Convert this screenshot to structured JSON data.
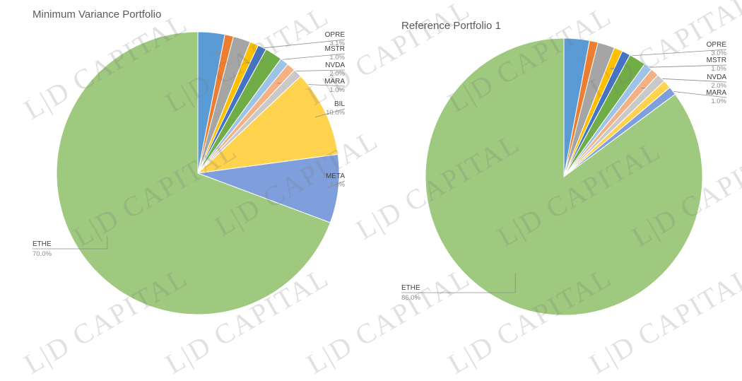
{
  "watermark_text": "L|D CAPITAL",
  "chart_data": [
    {
      "type": "pie",
      "title": "Minimum Variance Portfolio",
      "slices": [
        {
          "label": "OPRE",
          "value": 3.1,
          "pct": "3.1%",
          "color": "#5b9bd5",
          "labeled": true
        },
        {
          "label": "",
          "value": 1.0,
          "color": "#ed7d31",
          "labeled": false
        },
        {
          "label": "",
          "value": 2.0,
          "color": "#a5a5a5",
          "labeled": false
        },
        {
          "label": "MSTR",
          "value": 1.0,
          "pct": "1.0%",
          "color": "#ffc000",
          "labeled": true
        },
        {
          "label": "",
          "value": 1.0,
          "color": "#4472c4",
          "labeled": false
        },
        {
          "label": "NVDA",
          "value": 2.0,
          "pct": "2.0%",
          "color": "#70ad47",
          "labeled": true
        },
        {
          "label": "",
          "value": 1.0,
          "color": "#9dc3e6",
          "labeled": false
        },
        {
          "label": "MARA",
          "value": 1.0,
          "pct": "1.0%",
          "color": "#f4b183",
          "labeled": true
        },
        {
          "label": "",
          "value": 1.0,
          "color": "#c9c9c9",
          "labeled": false
        },
        {
          "label": "BIL",
          "value": 10.0,
          "pct": "10.0%",
          "color": "#ffd34e",
          "labeled": true
        },
        {
          "label": "META",
          "value": 7.9,
          "pct": "7.9%",
          "color": "#7f9fdc",
          "labeled": true
        },
        {
          "label": "ETHE",
          "value": 70.0,
          "pct": "70.0%",
          "color": "#9ec97f",
          "labeled": true
        }
      ]
    },
    {
      "type": "pie",
      "title": "Reference Portfolio 1",
      "slices": [
        {
          "label": "OPRE",
          "value": 3.0,
          "pct": "3.0%",
          "color": "#5b9bd5",
          "labeled": true
        },
        {
          "label": "",
          "value": 1.0,
          "color": "#ed7d31",
          "labeled": false
        },
        {
          "label": "",
          "value": 2.0,
          "color": "#a5a5a5",
          "labeled": false
        },
        {
          "label": "MSTR",
          "value": 1.0,
          "pct": "1.0%",
          "color": "#ffc000",
          "labeled": true
        },
        {
          "label": "",
          "value": 1.0,
          "color": "#4472c4",
          "labeled": false
        },
        {
          "label": "NVDA",
          "value": 2.0,
          "pct": "2.0%",
          "color": "#70ad47",
          "labeled": true
        },
        {
          "label": "",
          "value": 1.0,
          "color": "#9dc3e6",
          "labeled": false
        },
        {
          "label": "MARA",
          "value": 1.0,
          "pct": "1.0%",
          "color": "#f4b183",
          "labeled": true
        },
        {
          "label": "",
          "value": 1.0,
          "color": "#c9c9c9",
          "labeled": false
        },
        {
          "label": "",
          "value": 1.0,
          "color": "#ffd34e",
          "labeled": false
        },
        {
          "label": "",
          "value": 1.0,
          "color": "#7f9fdc",
          "labeled": false
        },
        {
          "label": "ETHE",
          "value": 86.0,
          "pct": "86.0%",
          "color": "#9ec97f",
          "labeled": true
        }
      ]
    }
  ]
}
